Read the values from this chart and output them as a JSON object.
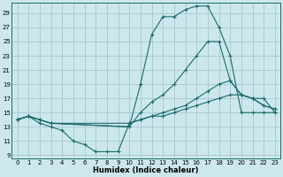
{
  "bg_color": "#cce8ec",
  "grid_color": "#aaccd4",
  "line_color": "#1a6b6b",
  "xlabel": "Humidex (Indice chaleur)",
  "xlim": [
    -0.5,
    23.5
  ],
  "ylim": [
    8.5,
    30.5
  ],
  "xticks": [
    0,
    1,
    2,
    3,
    4,
    5,
    6,
    7,
    8,
    9,
    10,
    11,
    12,
    13,
    14,
    15,
    16,
    17,
    18,
    19,
    20,
    21,
    22,
    23
  ],
  "yticks": [
    9,
    11,
    13,
    15,
    17,
    19,
    21,
    23,
    25,
    27,
    29
  ],
  "line1_x": [
    0,
    1,
    2,
    3,
    10,
    11,
    12,
    13,
    14,
    15,
    16,
    17,
    18,
    19,
    20,
    21,
    22,
    23
  ],
  "line1_y": [
    14,
    14.5,
    14,
    13.5,
    13,
    19,
    26,
    28.5,
    28.5,
    29.5,
    30,
    30,
    27,
    23,
    15,
    15,
    15,
    15
  ],
  "line2_x": [
    0,
    1,
    2,
    3,
    10,
    11,
    12,
    13,
    14,
    15,
    16,
    17,
    18,
    19,
    20,
    21,
    22,
    23
  ],
  "line2_y": [
    14,
    14.5,
    14,
    13.5,
    13,
    15,
    16.5,
    17.5,
    19,
    21,
    23,
    25,
    25,
    19.5,
    17.5,
    17,
    17,
    15
  ],
  "line3_x": [
    0,
    1,
    2,
    3,
    4,
    5,
    6,
    7,
    8,
    9,
    10,
    11,
    12,
    13,
    14,
    15,
    16,
    17,
    18,
    19,
    20,
    21,
    22,
    23
  ],
  "line3_y": [
    14,
    14.5,
    13.5,
    13,
    12.5,
    11,
    10.5,
    9.5,
    9.5,
    9.5,
    13.5,
    14,
    14.5,
    14.5,
    15,
    15.5,
    16,
    16.5,
    17,
    17.5,
    17.5,
    17,
    16,
    15.5
  ],
  "line4_x": [
    0,
    1,
    2,
    3,
    10,
    11,
    12,
    13,
    14,
    15,
    16,
    17,
    18,
    19,
    20,
    21,
    22,
    23
  ],
  "line4_y": [
    14,
    14.5,
    14,
    13.5,
    13.5,
    14,
    14.5,
    15,
    15.5,
    16,
    17,
    18,
    19,
    19.5,
    17.5,
    17,
    16,
    15.5
  ]
}
